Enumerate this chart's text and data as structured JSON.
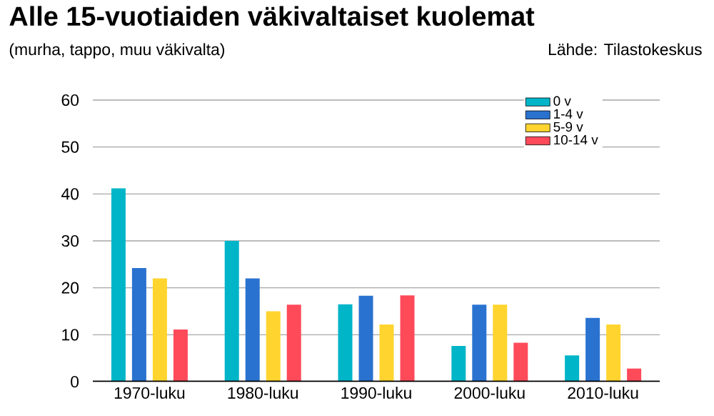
{
  "chart_data": {
    "type": "bar",
    "title": "Alle 15-vuotiaiden väkivaltaiset kuolemat",
    "subtitle": "(murha, tappo, muu väkivalta)",
    "annotations": [
      "Lähde: Tilastokeskus"
    ],
    "categories": [
      "1970-luku",
      "1980-luku",
      "1990-luku",
      "2000-luku",
      "2010-luku"
    ],
    "series": [
      {
        "name": "0 v",
        "color": "#00b5c8",
        "values": [
          41.2,
          30,
          16.5,
          7.6,
          5.6
        ]
      },
      {
        "name": "1-4 v",
        "color": "#2a72d0",
        "values": [
          24.2,
          22,
          18.3,
          16.4,
          13.6
        ]
      },
      {
        "name": "5-9 v",
        "color": "#ffd42e",
        "values": [
          22,
          15,
          12.2,
          16.4,
          12.2
        ]
      },
      {
        "name": "10-14 v",
        "color": "#ff4a5a",
        "values": [
          11.1,
          16.4,
          18.4,
          8.3,
          2.8
        ]
      }
    ],
    "ylim": [
      0,
      60
    ],
    "yticks": [
      0,
      10,
      20,
      30,
      40,
      50,
      60
    ],
    "grid": "y",
    "legend": "top right"
  }
}
